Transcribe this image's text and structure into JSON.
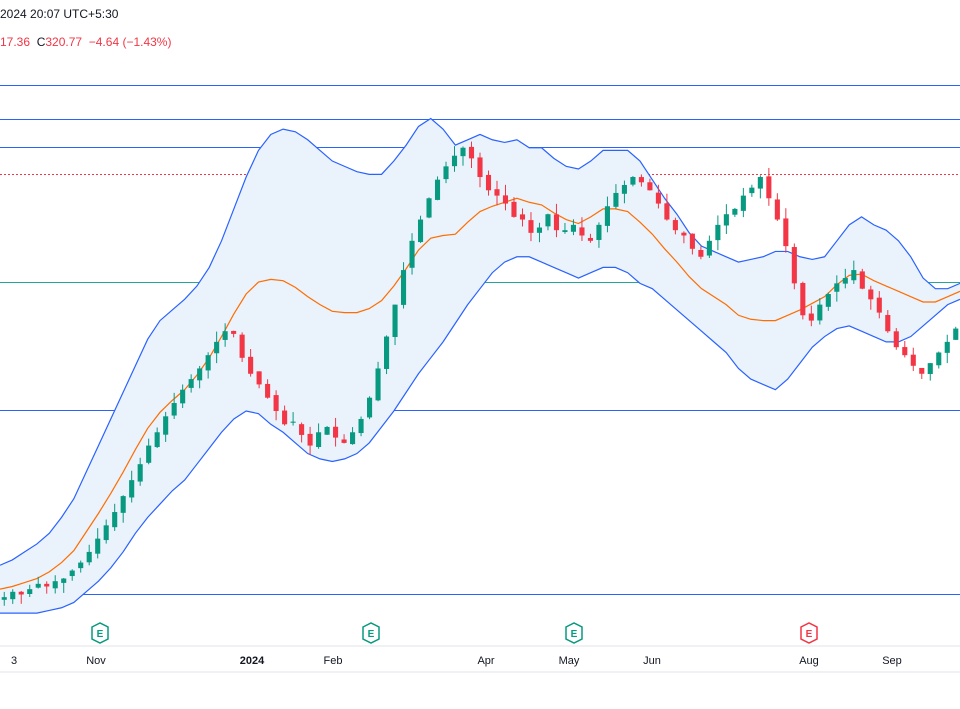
{
  "header": {
    "datetime": "2024 20:07 UTC+5:30",
    "low_partial": "17.36",
    "close_label": "C",
    "close": "320.77",
    "change": "−4.64 (−1.43%)"
  },
  "colors": {
    "up": "#089981",
    "down": "#f23645",
    "band": "#2962ff",
    "basis": "#ff6d00",
    "band_fill": "#eaf2fb",
    "hline": "#2962ff",
    "hline_alt": "#26a69a",
    "hline_dotted": "#f23645"
  },
  "events": [
    {
      "label": "E",
      "date": "Nov",
      "color": "#089981"
    },
    {
      "label": "E",
      "date": "Feb",
      "color": "#089981"
    },
    {
      "label": "E",
      "date": "May",
      "color": "#089981"
    },
    {
      "label": "E",
      "date": "Aug",
      "color": "#f23645"
    }
  ],
  "chart_data": {
    "type": "candlestick",
    "indicator": "Bollinger Bands",
    "x_ticks": [
      "3",
      "Nov",
      "2024",
      "Feb",
      "Apr",
      "May",
      "Jun",
      "Aug",
      "Sep"
    ],
    "horizontal_levels": [
      {
        "style": "solid",
        "color": "#2962ff",
        "level": 1
      },
      {
        "style": "solid",
        "color": "#2962ff",
        "level": 2
      },
      {
        "style": "solid",
        "color": "#2962ff",
        "level": 3
      },
      {
        "style": "dotted",
        "color": "#f23645",
        "level": 4
      },
      {
        "style": "solid",
        "color": "#26a69a",
        "level": 5
      },
      {
        "style": "solid",
        "color": "#2962ff",
        "level": 6
      },
      {
        "style": "solid",
        "color": "#2962ff",
        "level": 7
      }
    ],
    "close_series": [
      128,
      130,
      129,
      131,
      133,
      132,
      134,
      135,
      138,
      141,
      145,
      150,
      155,
      160,
      166,
      172,
      178,
      185,
      190,
      196,
      201,
      206,
      210,
      214,
      219,
      224,
      228,
      227,
      218,
      212,
      208,
      203,
      198,
      193,
      194,
      189,
      185,
      190,
      192,
      188,
      186,
      190,
      195,
      203,
      214,
      226,
      238,
      251,
      262,
      270,
      278,
      285,
      290,
      294,
      297,
      293,
      286,
      281,
      279,
      276,
      271,
      270,
      265,
      267,
      272,
      266,
      266,
      268,
      264,
      262,
      268,
      275,
      280,
      283,
      286,
      284,
      281,
      276,
      270,
      266,
      264,
      259,
      256,
      262,
      268,
      272,
      274,
      279,
      282,
      286,
      278,
      270,
      260,
      246,
      234,
      232,
      238,
      242,
      246,
      248,
      251,
      244,
      240,
      235,
      228,
      222,
      219,
      215,
      212,
      216,
      220,
      224,
      229
    ],
    "bb_upper": [
      140,
      142,
      145,
      148,
      152,
      158,
      165,
      175,
      185,
      195,
      205,
      215,
      225,
      232,
      236,
      240,
      245,
      252,
      262,
      274,
      286,
      296,
      302,
      304,
      303,
      300,
      296,
      292,
      290,
      288,
      287,
      287,
      292,
      298,
      305,
      308,
      304,
      298,
      300,
      302,
      300,
      299,
      300,
      297,
      297,
      293,
      290,
      289,
      292,
      296,
      296,
      296,
      292,
      285,
      278,
      272,
      265,
      260,
      258,
      256,
      254,
      255,
      256,
      258,
      258,
      256,
      255,
      256,
      262,
      268,
      271,
      268,
      266,
      262,
      256,
      248,
      244,
      244,
      246
    ],
    "bb_lower": [
      122,
      122,
      122,
      122,
      123,
      124,
      126,
      130,
      134,
      139,
      145,
      152,
      158,
      163,
      168,
      172,
      178,
      184,
      190,
      195,
      198,
      197,
      193,
      190,
      186,
      182,
      180,
      179,
      180,
      182,
      186,
      192,
      198,
      205,
      212,
      218,
      224,
      231,
      238,
      244,
      250,
      254,
      256,
      256,
      254,
      252,
      250,
      248,
      250,
      252,
      252,
      250,
      246,
      244,
      240,
      236,
      232,
      228,
      224,
      220,
      214,
      210,
      208,
      206,
      210,
      216,
      222,
      226,
      229,
      230,
      228,
      226,
      224,
      224,
      226,
      230,
      234,
      238,
      240
    ]
  }
}
